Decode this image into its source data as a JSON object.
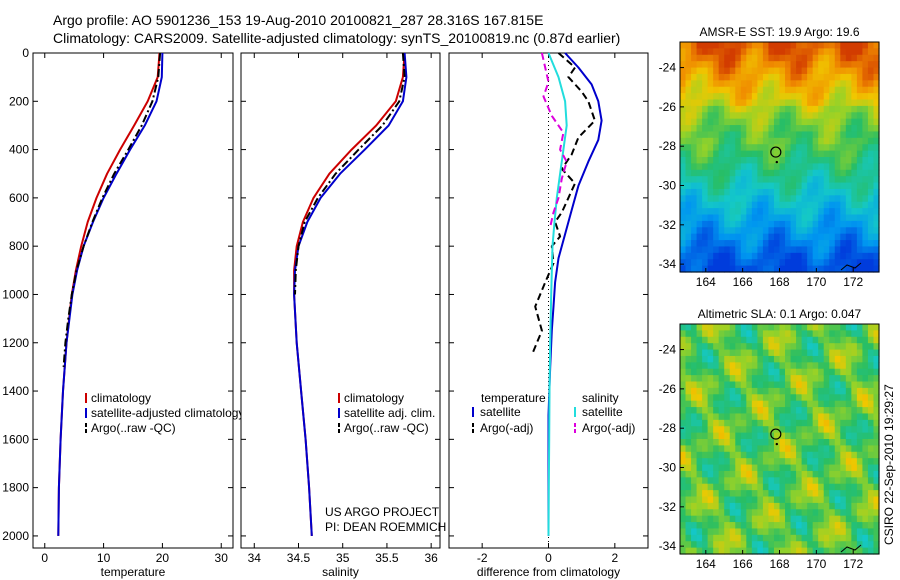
{
  "header": {
    "line1": "Argo profile: AO 5901236_153 19-Aug-2010 20100821_287 28.316S 167.815E",
    "line2": "Climatology: CARS2009. Satellite-adjusted climatology: synTS_20100819.nc (0.87d earlier)"
  },
  "side_text": "CSIRO 22-Sep-2010 19:29:27",
  "colors": {
    "climatology": "#cc0000",
    "satellite": "#0000cc",
    "argo": "#000000",
    "cyan": "#22dddd",
    "magenta": "#dd00dd"
  },
  "chart_data": [
    {
      "id": "temperature",
      "type": "line",
      "xlabel": "temperature",
      "xlim": [
        -2,
        32
      ],
      "ylim": [
        0,
        2050
      ],
      "y_reversed": true,
      "xticks": [
        "0",
        "10",
        "20",
        "30"
      ],
      "yticks": [
        "0",
        "200",
        "400",
        "600",
        "800",
        "1000",
        "1200",
        "1400",
        "1600",
        "1800",
        "2000"
      ],
      "legend": {
        "placement": "lower-right",
        "entries": [
          "climatology",
          "satellite-adjusted climatology",
          "Argo(..raw -QC)"
        ]
      },
      "series": [
        {
          "name": "climatology",
          "style": "solid",
          "color": "#cc0000",
          "y": [
            0,
            100,
            200,
            300,
            400,
            500,
            600,
            700,
            800,
            900,
            1000,
            1200,
            1400,
            1600,
            1800,
            2000
          ],
          "x": [
            19.5,
            19.2,
            17.5,
            15.2,
            12.8,
            10.6,
            8.8,
            7.3,
            6.2,
            5.3,
            4.6,
            3.7,
            3.1,
            2.7,
            2.4,
            2.3
          ]
        },
        {
          "name": "satellite-adjusted climatology",
          "style": "solid",
          "color": "#0000cc",
          "y": [
            0,
            100,
            200,
            300,
            400,
            500,
            600,
            700,
            800,
            900,
            1000,
            1200,
            1400,
            1600,
            1800,
            2000
          ],
          "x": [
            20.0,
            19.9,
            19.0,
            17.0,
            14.5,
            12.2,
            10.0,
            8.2,
            6.6,
            5.5,
            4.7,
            3.7,
            3.1,
            2.7,
            2.4,
            2.3
          ]
        },
        {
          "name": "Argo(..raw -QC)",
          "style": "dashdot",
          "color": "#000000",
          "y": [
            0,
            100,
            200,
            300,
            400,
            500,
            600,
            700,
            800,
            900,
            1000,
            1100,
            1200,
            1300
          ],
          "x": [
            19.6,
            19.3,
            18.3,
            16.5,
            14.2,
            11.8,
            9.8,
            8.1,
            6.6,
            5.4,
            4.6,
            4.0,
            3.5,
            3.2
          ]
        }
      ]
    },
    {
      "id": "salinity",
      "type": "line",
      "xlabel": "salinity",
      "xlim": [
        33.85,
        36.1
      ],
      "ylim": [
        0,
        2050
      ],
      "y_reversed": true,
      "xticks": [
        "34",
        "34.5",
        "35",
        "35.5",
        "36"
      ],
      "legend": {
        "placement": "lower-right",
        "entries": [
          "climatology",
          "satellite adj. clim.",
          "Argo(..raw -QC)"
        ]
      },
      "annotation": [
        "US ARGO PROJECT",
        "PI: DEAN ROEMMICH"
      ],
      "series": [
        {
          "name": "climatology",
          "style": "solid",
          "color": "#cc0000",
          "y": [
            0,
            100,
            200,
            300,
            400,
            500,
            600,
            700,
            800,
            900,
            1000,
            1200,
            1400,
            1600,
            1800,
            2000
          ],
          "x": [
            35.7,
            35.68,
            35.6,
            35.38,
            35.1,
            34.85,
            34.67,
            34.55,
            34.48,
            34.45,
            34.45,
            34.48,
            34.53,
            34.58,
            34.62,
            34.65
          ]
        },
        {
          "name": "satellite adj. clim.",
          "style": "solid",
          "color": "#0000cc",
          "y": [
            0,
            100,
            200,
            300,
            400,
            500,
            600,
            700,
            800,
            900,
            1000,
            1200,
            1400,
            1600,
            1800,
            2000
          ],
          "x": [
            35.7,
            35.72,
            35.68,
            35.52,
            35.25,
            34.97,
            34.75,
            34.6,
            34.5,
            34.46,
            34.45,
            34.48,
            34.53,
            34.58,
            34.62,
            34.65
          ]
        },
        {
          "name": "Argo(..raw -QC)",
          "style": "dashdot",
          "color": "#000000",
          "y": [
            0,
            100,
            200,
            300,
            400,
            500,
            600,
            700,
            800,
            900,
            1000
          ],
          "x": [
            35.68,
            35.7,
            35.64,
            35.45,
            35.18,
            34.92,
            34.72,
            34.57,
            34.5,
            34.47,
            34.46
          ]
        }
      ]
    },
    {
      "id": "difference",
      "type": "line",
      "xlabel": "difference from climatology",
      "xlim": [
        -3.0,
        3.0
      ],
      "ylim": [
        0,
        2050
      ],
      "y_reversed": true,
      "xticks": [
        "-2",
        "0",
        "2"
      ],
      "zero_line": true,
      "legend": {
        "placement": "lower-right",
        "groups": [
          {
            "title": "temperature",
            "entries": [
              "satellite",
              "Argo(-adj)"
            ]
          },
          {
            "title": "salinity",
            "entries": [
              "satellite",
              "Argo(-adj)"
            ]
          }
        ]
      },
      "series": [
        {
          "name": "temperature satellite",
          "style": "solid",
          "color": "#0000cc",
          "y": [
            0,
            60,
            130,
            200,
            280,
            360,
            450,
            550,
            650,
            750,
            850,
            950,
            1050,
            1150,
            1300,
            1500,
            1800,
            2000
          ],
          "x": [
            0.5,
            0.9,
            1.3,
            1.5,
            1.6,
            1.5,
            1.2,
            0.9,
            0.7,
            0.5,
            0.3,
            0.2,
            0.15,
            0.1,
            0.05,
            0.0,
            0.0,
            0.0
          ]
        },
        {
          "name": "temperature Argo(-adj)",
          "style": "dashed",
          "color": "#000000",
          "y": [
            0,
            60,
            100,
            160,
            200,
            280,
            350,
            420,
            480,
            540,
            600,
            660,
            700,
            760,
            800,
            870,
            950,
            1050,
            1150,
            1250
          ],
          "x": [
            0.3,
            0.8,
            0.6,
            1.0,
            1.2,
            1.4,
            0.9,
            0.7,
            0.4,
            0.8,
            0.6,
            0.4,
            0.2,
            0.35,
            0.1,
            0.15,
            -0.1,
            -0.4,
            -0.2,
            -0.5
          ]
        },
        {
          "name": "salinity satellite",
          "style": "solid",
          "color": "#22dddd",
          "y": [
            0,
            100,
            200,
            300,
            400,
            500,
            600,
            700,
            800,
            1000,
            1200,
            1400,
            1600,
            1800,
            2000
          ],
          "x": [
            0.0,
            0.3,
            0.5,
            0.55,
            0.45,
            0.35,
            0.25,
            0.18,
            0.12,
            0.08,
            0.05,
            0.03,
            0.02,
            0.01,
            0.0
          ]
        },
        {
          "name": "salinity Argo(-adj)",
          "style": "dashed",
          "color": "#dd00dd",
          "y": [
            0,
            60,
            120,
            180,
            260,
            330,
            400,
            450,
            520,
            600,
            660,
            720
          ],
          "x": [
            -0.2,
            -0.1,
            0.0,
            -0.15,
            0.1,
            0.45,
            0.35,
            0.55,
            0.4,
            0.3,
            0.15,
            0.05
          ]
        }
      ]
    },
    {
      "id": "sst_map",
      "type": "heatmap",
      "title": "AMSR-E SST: 19.9 Argo: 19.6",
      "xlim": [
        162.6,
        173.4
      ],
      "ylim": [
        -34.4,
        -22.7
      ],
      "xticks": [
        "164",
        "166",
        "168",
        "170",
        "172"
      ],
      "yticks": [
        "-24",
        "-26",
        "-28",
        "-30",
        "-32",
        "-34"
      ],
      "marker": {
        "lon": 167.8,
        "lat": -28.3
      }
    },
    {
      "id": "sla_map",
      "type": "heatmap",
      "title": "Altimetric SLA: 0.1 Argo: 0.047",
      "xlim": [
        162.6,
        173.4
      ],
      "ylim": [
        -34.4,
        -22.7
      ],
      "xticks": [
        "164",
        "166",
        "168",
        "170",
        "172"
      ],
      "yticks": [
        "-24",
        "-26",
        "-28",
        "-30",
        "-32",
        "-34"
      ],
      "marker": {
        "lon": 167.8,
        "lat": -28.3
      }
    }
  ]
}
